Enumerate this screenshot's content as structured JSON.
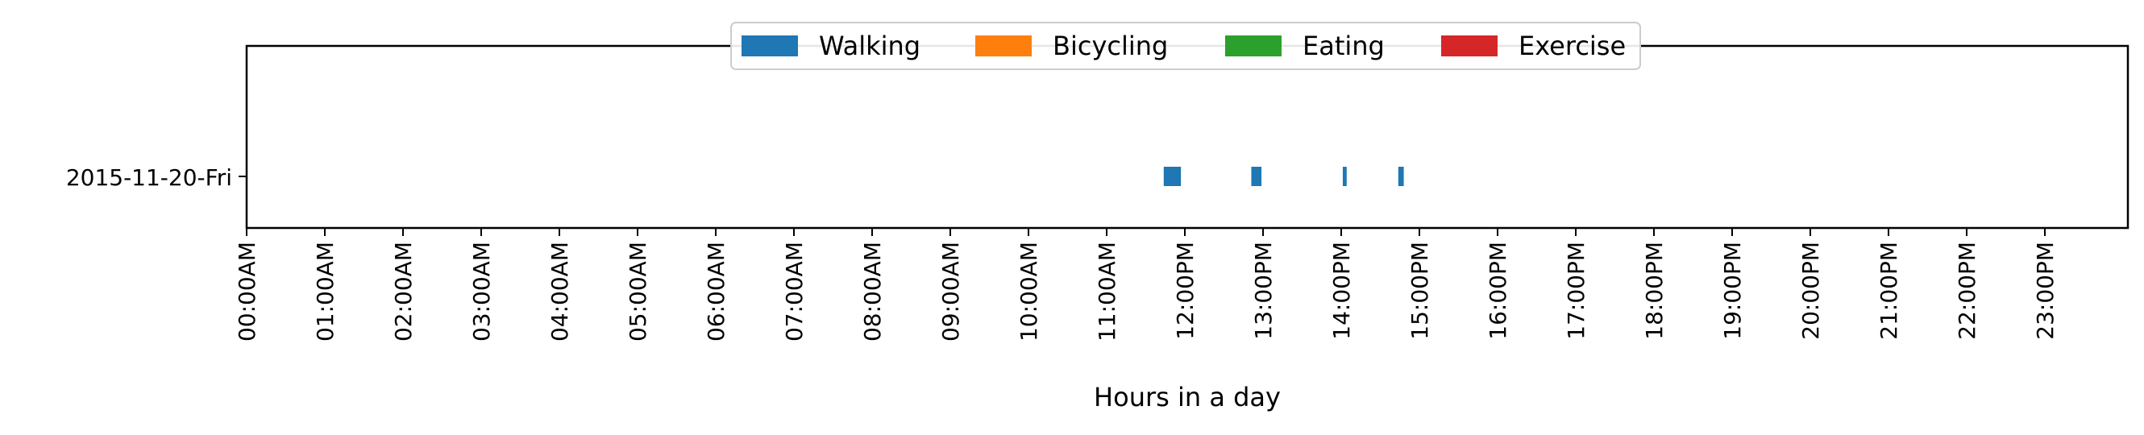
{
  "chart_data": {
    "type": "timeline",
    "xlabel": "Hours in a day",
    "ylabel": "",
    "xlim": [
      0,
      24
    ],
    "x_ticks": [
      {
        "hour": 0,
        "label": "00:00AM"
      },
      {
        "hour": 1,
        "label": "01:00AM"
      },
      {
        "hour": 2,
        "label": "02:00AM"
      },
      {
        "hour": 3,
        "label": "03:00AM"
      },
      {
        "hour": 4,
        "label": "04:00AM"
      },
      {
        "hour": 5,
        "label": "05:00AM"
      },
      {
        "hour": 6,
        "label": "06:00AM"
      },
      {
        "hour": 7,
        "label": "07:00AM"
      },
      {
        "hour": 8,
        "label": "08:00AM"
      },
      {
        "hour": 9,
        "label": "09:00AM"
      },
      {
        "hour": 10,
        "label": "10:00AM"
      },
      {
        "hour": 11,
        "label": "11:00AM"
      },
      {
        "hour": 12,
        "label": "12:00PM"
      },
      {
        "hour": 13,
        "label": "13:00PM"
      },
      {
        "hour": 14,
        "label": "14:00PM"
      },
      {
        "hour": 15,
        "label": "15:00PM"
      },
      {
        "hour": 16,
        "label": "16:00PM"
      },
      {
        "hour": 17,
        "label": "17:00PM"
      },
      {
        "hour": 18,
        "label": "18:00PM"
      },
      {
        "hour": 19,
        "label": "19:00PM"
      },
      {
        "hour": 20,
        "label": "20:00PM"
      },
      {
        "hour": 21,
        "label": "21:00PM"
      },
      {
        "hour": 22,
        "label": "22:00PM"
      },
      {
        "hour": 23,
        "label": "23:00PM"
      }
    ],
    "rows": [
      "2015-11-20-Fri"
    ],
    "legend": {
      "placement": "top-center",
      "entries": [
        {
          "name": "Walking",
          "color": "#1f77b4"
        },
        {
          "name": "Bicycling",
          "color": "#ff7f0e"
        },
        {
          "name": "Eating",
          "color": "#2ca02c"
        },
        {
          "name": "Exercise",
          "color": "#d62728"
        }
      ]
    },
    "events": [
      {
        "row": "2015-11-20-Fri",
        "activity": "Walking",
        "start": 11.73,
        "end": 11.95
      },
      {
        "row": "2015-11-20-Fri",
        "activity": "Walking",
        "start": 12.85,
        "end": 12.98
      },
      {
        "row": "2015-11-20-Fri",
        "activity": "Walking",
        "start": 14.02,
        "end": 14.07
      },
      {
        "row": "2015-11-20-Fri",
        "activity": "Walking",
        "start": 14.73,
        "end": 14.8
      }
    ],
    "grid": false
  }
}
